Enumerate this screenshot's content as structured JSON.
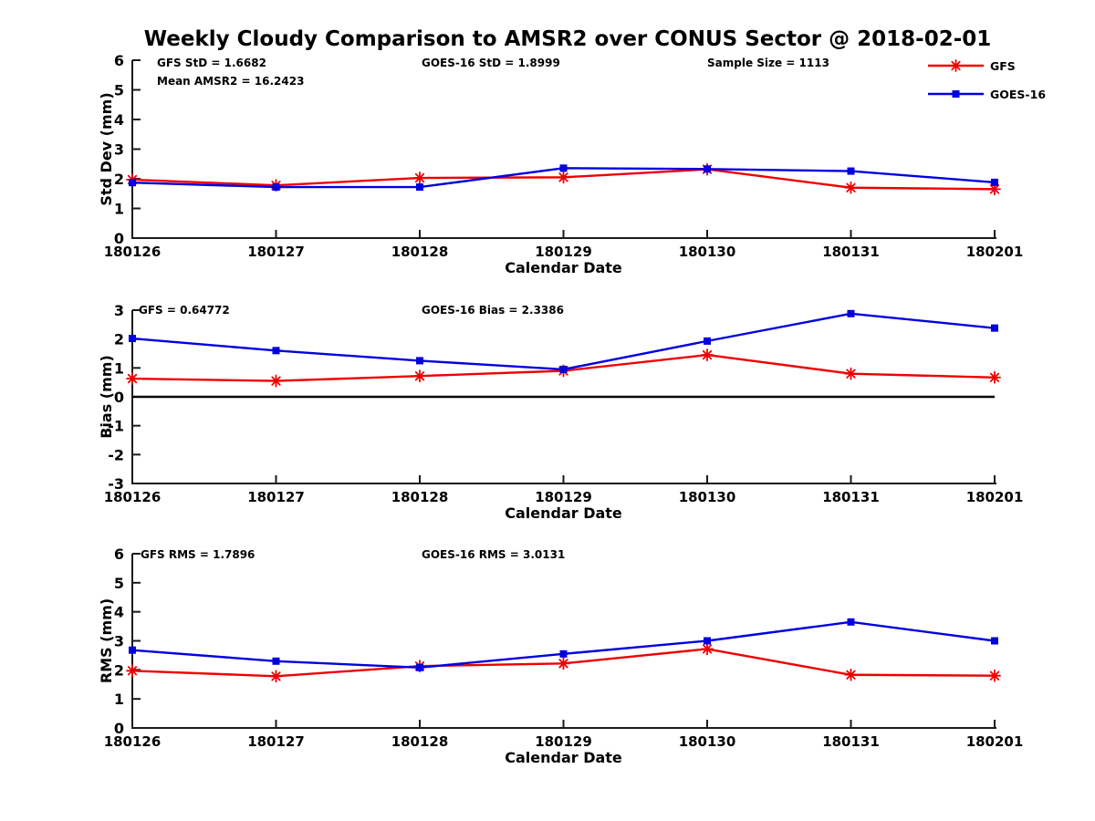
{
  "title": "Weekly Cloudy Comparison to AMSR2 over CONUS Sector @ 2018-02-01",
  "colors": {
    "gfs": "#ee0000",
    "goes16": "#0000e0",
    "axis": "#1a1a1a",
    "text": "#000000",
    "zero_line": "#000000"
  },
  "legend": [
    {
      "label": "GFS",
      "color_key": "gfs",
      "marker": "asterisk"
    },
    {
      "label": "GOES-16",
      "color_key": "goes16",
      "marker": "square"
    }
  ],
  "chart_data": [
    {
      "type": "line",
      "name": "std-dev",
      "ylabel": "Std Dev (mm)",
      "xlabel": "Calendar Date",
      "ylim": [
        0,
        6
      ],
      "yticks": [
        0,
        1,
        2,
        3,
        4,
        5,
        6
      ],
      "grid": false,
      "categories": [
        "180126",
        "180127",
        "180128",
        "180129",
        "180130",
        "180131",
        "180201"
      ],
      "annotations": [
        "GFS StD = 1.6682",
        "Mean AMSR2 = 16.2423",
        "GOES-16 StD = 1.8999",
        "Sample Size = 1113"
      ],
      "series": [
        {
          "name": "GFS",
          "color_key": "gfs",
          "marker": "asterisk",
          "values": [
            1.97,
            1.78,
            2.03,
            2.05,
            2.32,
            1.7,
            1.65
          ]
        },
        {
          "name": "GOES-16",
          "color_key": "goes16",
          "marker": "square",
          "values": [
            1.87,
            1.72,
            1.72,
            2.36,
            2.33,
            2.26,
            1.88
          ]
        }
      ]
    },
    {
      "type": "line",
      "name": "bias",
      "ylabel": "Bias (mm)",
      "xlabel": "Calendar Date",
      "ylim": [
        -3,
        3
      ],
      "yticks": [
        -3,
        -2,
        -1,
        0,
        1,
        2,
        3
      ],
      "grid": false,
      "zero_line": true,
      "categories": [
        "180126",
        "180127",
        "180128",
        "180129",
        "180130",
        "180131",
        "180201"
      ],
      "annotations": [
        "GFS = 0.64772",
        "GOES-16 Bias  = 2.3386"
      ],
      "series": [
        {
          "name": "GFS",
          "color_key": "gfs",
          "marker": "asterisk",
          "values": [
            0.63,
            0.55,
            0.72,
            0.9,
            1.45,
            0.8,
            0.67
          ]
        },
        {
          "name": "GOES-16",
          "color_key": "goes16",
          "marker": "square",
          "values": [
            2.02,
            1.6,
            1.25,
            0.95,
            1.93,
            2.88,
            2.38
          ]
        }
      ]
    },
    {
      "type": "line",
      "name": "rms",
      "ylabel": "RMS (mm)",
      "xlabel": "Calendar Date",
      "ylim": [
        0,
        6
      ],
      "yticks": [
        0,
        1,
        2,
        3,
        4,
        5,
        6
      ],
      "grid": false,
      "categories": [
        "180126",
        "180127",
        "180128",
        "180129",
        "180130",
        "180131",
        "180201"
      ],
      "annotations": [
        "GFS RMS = 1.7896",
        "GOES-16 RMS = 3.0131"
      ],
      "series": [
        {
          "name": "GFS",
          "color_key": "gfs",
          "marker": "asterisk",
          "values": [
            1.97,
            1.78,
            2.13,
            2.22,
            2.72,
            1.83,
            1.8
          ]
        },
        {
          "name": "GOES-16",
          "color_key": "goes16",
          "marker": "square",
          "values": [
            2.68,
            2.3,
            2.08,
            2.55,
            3.0,
            3.65,
            3.0
          ]
        }
      ]
    }
  ]
}
